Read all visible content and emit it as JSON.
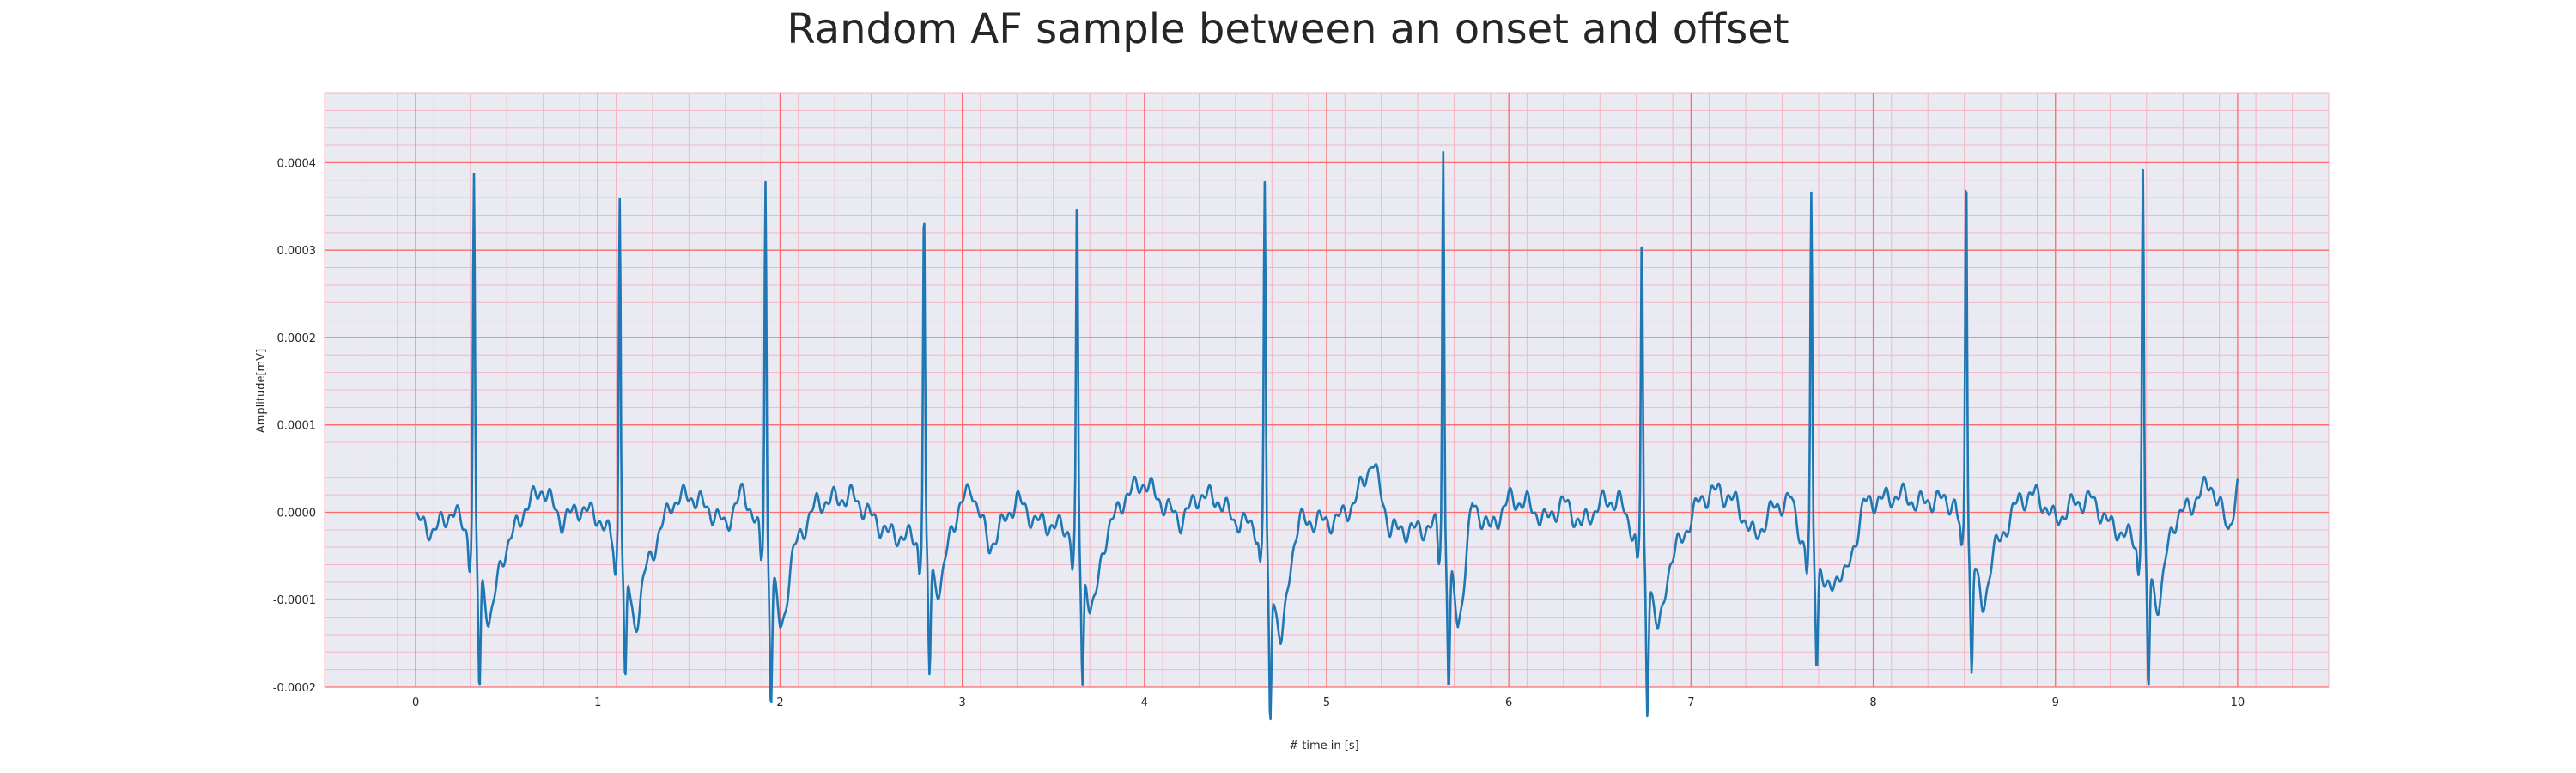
{
  "chart_data": {
    "type": "line",
    "title": "Random AF sample between an onset and offset",
    "xlabel": "# time in [s]",
    "ylabel": "Amplitude[mV]",
    "xlim": [
      -0.5,
      10.5
    ],
    "ylim": [
      -0.0002,
      0.00048
    ],
    "xticks": [
      0,
      1,
      2,
      3,
      4,
      5,
      6,
      7,
      8,
      9,
      10
    ],
    "xtick_labels": [
      "0",
      "1",
      "2",
      "3",
      "4",
      "5",
      "6",
      "7",
      "8",
      "9",
      "10"
    ],
    "yticks": [
      -0.0002,
      -0.0001,
      0.0,
      0.0001,
      0.0002,
      0.0003,
      0.0004
    ],
    "ytick_labels": [
      "-0.0002",
      "-0.0001",
      "0.0000",
      "0.0001",
      "0.0002",
      "0.0003",
      "0.0004"
    ],
    "grid": true,
    "minor_grid": true,
    "colors": {
      "plot_background": "#eaeaf2",
      "major_grid": "#ff6b6b",
      "minor_grid": "#f4b6c2",
      "line": "#1f77b4"
    },
    "series": [
      {
        "name": "",
        "peaks": [
          {
            "t": 0.32,
            "r": 0.000415,
            "s": -0.000145
          },
          {
            "t": 1.12,
            "r": 0.000418,
            "s": -0.000138
          },
          {
            "t": 1.92,
            "r": 0.000422,
            "s": -0.000153
          },
          {
            "t": 2.79,
            "r": 0.000388,
            "s": -0.000136
          },
          {
            "t": 3.63,
            "r": 0.0004,
            "s": -0.000138
          },
          {
            "t": 4.66,
            "r": 0.00042,
            "s": -0.000173
          },
          {
            "t": 5.64,
            "r": 0.000452,
            "s": -0.000143
          },
          {
            "t": 6.73,
            "r": 0.000365,
            "s": -0.000163
          },
          {
            "t": 7.66,
            "r": 0.000397,
            "s": -0.00012
          },
          {
            "t": 8.51,
            "r": 0.000437,
            "s": -0.000138
          },
          {
            "t": 9.48,
            "r": 0.000437,
            "s": -0.00015
          }
        ],
        "baseline": [
          [
            0.0,
            -8e-06
          ],
          [
            0.1,
            -2.2e-05
          ],
          [
            0.2,
            2e-06
          ],
          [
            0.28,
            -2e-05
          ],
          [
            0.4,
            -7.5e-05
          ],
          [
            0.5,
            -4e-05
          ],
          [
            0.6,
            5e-06
          ],
          [
            0.7,
            2.8e-05
          ],
          [
            0.8,
            -1e-05
          ],
          [
            0.9,
            5e-06
          ],
          [
            1.0,
            -5e-06
          ],
          [
            1.06,
            -2.5e-05
          ],
          [
            1.2,
            -8e-05
          ],
          [
            1.3,
            -4.5e-05
          ],
          [
            1.4,
            1e-05
          ],
          [
            1.5,
            2e-05
          ],
          [
            1.6,
            5e-06
          ],
          [
            1.7,
            -1.5e-05
          ],
          [
            1.8,
            2.5e-05
          ],
          [
            1.88,
            -2e-05
          ],
          [
            2.0,
            -8e-05
          ],
          [
            2.1,
            -3e-05
          ],
          [
            2.2,
            1e-05
          ],
          [
            2.3,
            1.5e-05
          ],
          [
            2.4,
            1.8e-05
          ],
          [
            2.5,
            -5e-06
          ],
          [
            2.6,
            -2.5e-05
          ],
          [
            2.74,
            -3e-05
          ],
          [
            2.85,
            -5e-05
          ],
          [
            2.95,
            -1e-05
          ],
          [
            3.05,
            3e-05
          ],
          [
            3.15,
            -4e-05
          ],
          [
            3.3,
            1.5e-05
          ],
          [
            3.4,
            -1e-05
          ],
          [
            3.5,
            -1.5e-05
          ],
          [
            3.58,
            -2e-05
          ],
          [
            3.7,
            -7e-05
          ],
          [
            3.8,
            -2e-05
          ],
          [
            3.9,
            2e-05
          ],
          [
            4.0,
            3.5e-05
          ],
          [
            4.1,
            1e-05
          ],
          [
            4.2,
            -1e-05
          ],
          [
            4.3,
            2e-05
          ],
          [
            4.4,
            1.5e-05
          ],
          [
            4.5,
            -1e-05
          ],
          [
            4.6,
            -1.5e-05
          ],
          [
            4.75,
            -9e-05
          ],
          [
            4.85,
            -1e-05
          ],
          [
            4.95,
            -1e-05
          ],
          [
            5.05,
            -1e-05
          ],
          [
            5.15,
            1e-05
          ],
          [
            5.25,
            6e-05
          ],
          [
            5.35,
            -2e-05
          ],
          [
            5.5,
            -2e-05
          ],
          [
            5.6,
            -1.5e-05
          ],
          [
            5.72,
            -8e-05
          ],
          [
            5.8,
            1e-05
          ],
          [
            5.9,
            -2e-05
          ],
          [
            6.0,
            1.5e-05
          ],
          [
            6.1,
            1e-05
          ],
          [
            6.2,
            -1e-05
          ],
          [
            6.3,
            1.2e-05
          ],
          [
            6.4,
            -1.5e-05
          ],
          [
            6.5,
            1e-05
          ],
          [
            6.6,
            1.5e-05
          ],
          [
            6.69,
            -2.5e-05
          ],
          [
            6.82,
            -8e-05
          ],
          [
            6.95,
            -3e-05
          ],
          [
            7.05,
            1.5e-05
          ],
          [
            7.15,
            2.5e-05
          ],
          [
            7.25,
            1e-05
          ],
          [
            7.35,
            -3e-05
          ],
          [
            7.45,
            5e-06
          ],
          [
            7.55,
            1.5e-05
          ],
          [
            7.62,
            -4e-05
          ],
          [
            7.75,
            -5e-05
          ],
          [
            7.85,
            -7.5e-05
          ],
          [
            7.95,
            1e-05
          ],
          [
            8.05,
            1.5e-05
          ],
          [
            8.15,
            2e-05
          ],
          [
            8.25,
            1e-05
          ],
          [
            8.35,
            1.5e-05
          ],
          [
            8.45,
            1e-05
          ],
          [
            8.47,
            -1.5e-05
          ],
          [
            8.6,
            -6e-05
          ],
          [
            8.7,
            -3e-05
          ],
          [
            8.8,
            1.5e-05
          ],
          [
            8.9,
            2e-05
          ],
          [
            9.0,
            -1e-05
          ],
          [
            9.1,
            1e-05
          ],
          [
            9.2,
            1.5e-05
          ],
          [
            9.3,
            -1.5e-05
          ],
          [
            9.42,
            -3e-05
          ],
          [
            9.55,
            -6e-05
          ],
          [
            9.65,
            -1e-05
          ],
          [
            9.75,
            1e-05
          ],
          [
            9.85,
            3.5e-05
          ],
          [
            9.95,
            -2e-05
          ],
          [
            10.0,
            2.8e-05
          ]
        ]
      }
    ]
  }
}
